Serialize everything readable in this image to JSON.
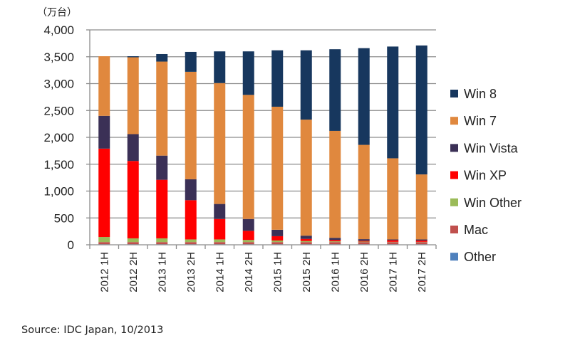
{
  "chart_data": {
    "type": "bar",
    "stacked": true,
    "unit_label": "（万台）",
    "xlabel": "",
    "ylabel": "",
    "ylim": [
      0,
      4000
    ],
    "yticks": [
      0,
      500,
      1000,
      1500,
      2000,
      2500,
      3000,
      3500,
      4000
    ],
    "ytick_labels": [
      "0",
      "500",
      "1,000",
      "1,500",
      "2,000",
      "2,500",
      "3,000",
      "3,500",
      "4,000"
    ],
    "grid": true,
    "legend_position": "right",
    "categories": [
      "2012 1H",
      "2012 2H",
      "2013 1H",
      "2013 2H",
      "2014 1H",
      "2014 2H",
      "2015 1H",
      "2015 2H",
      "2016 1H",
      "2016 2H",
      "2017 1H",
      "2017 2H"
    ],
    "series": [
      {
        "name": "Other",
        "color": "#4f81bd",
        "values": [
          10,
          10,
          10,
          10,
          10,
          10,
          10,
          10,
          10,
          10,
          10,
          10
        ]
      },
      {
        "name": "Mac",
        "color": "#c0504d",
        "values": [
          40,
          40,
          40,
          40,
          40,
          40,
          40,
          40,
          40,
          40,
          40,
          40
        ]
      },
      {
        "name": "Win Other",
        "color": "#9bbb59",
        "values": [
          95,
          70,
          70,
          50,
          50,
          40,
          30,
          20,
          15,
          10,
          5,
          5
        ]
      },
      {
        "name": "Win XP",
        "color": "#ff0000",
        "values": [
          1645,
          1440,
          1090,
          730,
          380,
          170,
          80,
          40,
          25,
          15,
          30,
          25
        ]
      },
      {
        "name": "Win Vista",
        "color": "#3b3056",
        "values": [
          610,
          500,
          450,
          390,
          280,
          220,
          120,
          60,
          40,
          30,
          15,
          20
        ]
      },
      {
        "name": "Win 7",
        "color": "#e0883e",
        "values": [
          1110,
          1430,
          1750,
          2000,
          2250,
          2310,
          2290,
          2160,
          1990,
          1755,
          1510,
          1210
        ]
      },
      {
        "name": "Win 8",
        "color": "#17375e",
        "values": [
          0,
          20,
          140,
          370,
          590,
          810,
          1050,
          1290,
          1520,
          1800,
          2080,
          2400
        ]
      }
    ],
    "source": "Source: IDC Japan, 10/2013"
  }
}
